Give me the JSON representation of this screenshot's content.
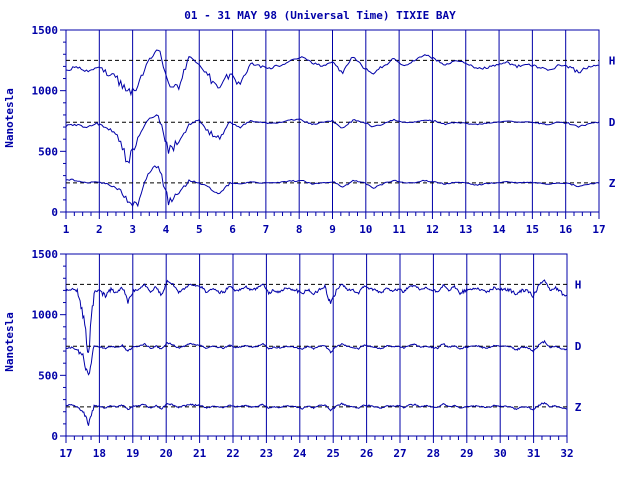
{
  "chart_data": {
    "type": "line",
    "title": "01 - 31 MAY 98 (Universal Time) TIXIE BAY",
    "ylabel": "Nanotesla",
    "ylim": [
      0,
      1500
    ],
    "y_ticks": [
      "0",
      "500",
      "1000",
      "1500"
    ],
    "colors": {
      "trace": "#0000a8",
      "axes": "#0000a8",
      "baseline": "#000000",
      "text": "#0000a8"
    },
    "series_names": [
      "H",
      "D",
      "Z"
    ],
    "baselines": {
      "H": 1250,
      "D": 740,
      "Z": 240
    },
    "panels": [
      {
        "x_range": [
          1,
          17
        ],
        "x_ticks": [
          "1",
          "2",
          "3",
          "4",
          "5",
          "6",
          "7",
          "8",
          "9",
          "10",
          "11",
          "12",
          "13",
          "14",
          "15",
          "16",
          "17"
        ],
        "series": [
          {
            "name": "H",
            "values": [
              1170,
              1190,
              1160,
              1200,
              1150,
              1100,
              980,
              1050,
              1240,
              1350,
              1080,
              1020,
              1280,
              1220,
              1100,
              1000,
              1150,
              1050,
              1230,
              1200,
              1190,
              1210,
              1250,
              1280,
              1230,
              1200,
              1230,
              1150,
              1280,
              1200,
              1150,
              1200,
              1270,
              1200,
              1250,
              1300,
              1260,
              1210,
              1250,
              1230,
              1180,
              1190,
              1210,
              1230,
              1200,
              1220,
              1200,
              1160,
              1210,
              1200,
              1150,
              1190,
              1210
            ]
          },
          {
            "name": "D",
            "values": [
              710,
              720,
              700,
              730,
              690,
              650,
              400,
              600,
              760,
              800,
              500,
              580,
              720,
              760,
              650,
              600,
              740,
              700,
              750,
              740,
              730,
              740,
              760,
              760,
              720,
              740,
              750,
              690,
              760,
              740,
              700,
              730,
              760,
              740,
              740,
              760,
              750,
              720,
              740,
              730,
              720,
              730,
              740,
              750,
              740,
              745,
              735,
              720,
              740,
              730,
              700,
              730,
              740
            ]
          },
          {
            "name": "Z",
            "values": [
              270,
              260,
              240,
              250,
              230,
              200,
              100,
              50,
              320,
              400,
              80,
              150,
              260,
              240,
              200,
              150,
              240,
              230,
              250,
              240,
              240,
              245,
              255,
              260,
              230,
              240,
              250,
              200,
              260,
              240,
              200,
              235,
              260,
              240,
              240,
              260,
              250,
              230,
              245,
              240,
              220,
              235,
              240,
              250,
              240,
              245,
              240,
              230,
              240,
              235,
              210,
              230,
              240
            ]
          }
        ]
      },
      {
        "x_range": [
          17,
          32
        ],
        "x_ticks": [
          "17",
          "18",
          "19",
          "20",
          "21",
          "22",
          "23",
          "24",
          "25",
          "26",
          "27",
          "28",
          "29",
          "30",
          "31",
          "32"
        ],
        "series": [
          {
            "name": "H",
            "values": [
              1200,
              1210,
              1190,
              1000,
              700,
              1180,
              1200,
              1150,
              1210,
              1180,
              1230,
              1100,
              1200,
              1210,
              1250,
              1180,
              1230,
              1160,
              1280,
              1250,
              1190,
              1210,
              1250,
              1240,
              1230,
              1180,
              1220,
              1190,
              1180,
              1240,
              1200,
              1210,
              1230,
              1200,
              1220,
              1250,
              1180,
              1200,
              1190,
              1220,
              1210,
              1200,
              1170,
              1210,
              1170,
              1210,
              1230,
              1080,
              1200,
              1250,
              1210,
              1200,
              1180,
              1240,
              1210,
              1200,
              1180,
              1220,
              1200,
              1210,
              1190,
              1230,
              1240,
              1200,
              1220,
              1200,
              1190,
              1240,
              1200,
              1230,
              1180,
              1200,
              1210,
              1220,
              1200,
              1190,
              1220,
              1210,
              1210,
              1200,
              1160,
              1200,
              1200,
              1150,
              1240,
              1290,
              1200,
              1220,
              1180,
              1160
            ]
          },
          {
            "name": "D",
            "values": [
              720,
              730,
              710,
              650,
              500,
              740,
              735,
              720,
              740,
              730,
              745,
              700,
              735,
              740,
              760,
              720,
              740,
              715,
              770,
              750,
              725,
              740,
              760,
              750,
              745,
              720,
              740,
              730,
              725,
              750,
              730,
              735,
              745,
              730,
              740,
              760,
              720,
              730,
              725,
              740,
              735,
              730,
              715,
              740,
              720,
              740,
              750,
              690,
              735,
              760,
              740,
              730,
              720,
              750,
              740,
              730,
              720,
              745,
              735,
              740,
              725,
              750,
              755,
              730,
              740,
              730,
              725,
              760,
              730,
              745,
              720,
              730,
              740,
              745,
              730,
              725,
              745,
              740,
              740,
              735,
              710,
              730,
              730,
              700,
              750,
              780,
              730,
              740,
              720,
              710
            ]
          },
          {
            "name": "Z",
            "values": [
              250,
              260,
              240,
              200,
              100,
              250,
              245,
              230,
              250,
              240,
              255,
              220,
              245,
              250,
              260,
              230,
              250,
              225,
              270,
              255,
              235,
              250,
              260,
              255,
              250,
              230,
              245,
              240,
              235,
              255,
              240,
              245,
              250,
              240,
              245,
              260,
              230,
              240,
              235,
              250,
              245,
              240,
              225,
              250,
              230,
              250,
              255,
              210,
              245,
              265,
              250,
              240,
              230,
              255,
              250,
              240,
              230,
              250,
              245,
              250,
              235,
              255,
              260,
              240,
              250,
              240,
              235,
              265,
              240,
              250,
              230,
              240,
              245,
              250,
              240,
              235,
              250,
              245,
              245,
              240,
              220,
              240,
              240,
              215,
              255,
              275,
              240,
              250,
              230,
              220
            ]
          }
        ]
      }
    ]
  }
}
